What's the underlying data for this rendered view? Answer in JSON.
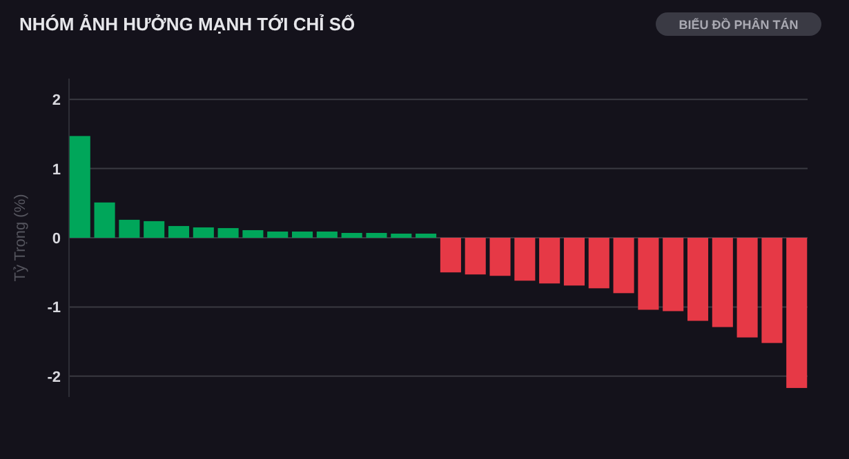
{
  "chart_data": {
    "type": "bar",
    "title": "NHÓM ẢNH HƯỞNG MẠNH TỚI CHỈ SỐ",
    "ylabel": "Tỷ Trọng (%)",
    "annotations": [
      "BIỂU ĐỒ PHÂN TÁN"
    ],
    "categories": [
      null,
      null,
      null,
      null,
      null,
      null,
      null,
      null,
      null,
      null,
      null,
      null,
      null,
      null,
      null,
      null,
      null,
      null,
      null,
      null,
      null,
      null,
      null,
      null,
      null,
      null,
      null,
      null,
      null,
      null
    ],
    "values": [
      1.47,
      0.51,
      0.26,
      0.24,
      0.17,
      0.15,
      0.14,
      0.11,
      0.09,
      0.09,
      0.09,
      0.07,
      0.07,
      0.06,
      0.06,
      -0.5,
      -0.53,
      -0.55,
      -0.62,
      -0.66,
      -0.69,
      -0.73,
      -0.8,
      -1.04,
      -1.06,
      -1.2,
      -1.29,
      -1.44,
      -1.52,
      -2.17
    ],
    "colors": [
      "#00a65a",
      "#00a65a",
      "#00a65a",
      "#00a65a",
      "#00a65a",
      "#00a65a",
      "#00a65a",
      "#00a65a",
      "#00a65a",
      "#00a65a",
      "#00a65a",
      "#00a65a",
      "#00a65a",
      "#00a65a",
      "#00a65a",
      "#e63946",
      "#e63946",
      "#e63946",
      "#e63946",
      "#e63946",
      "#e63946",
      "#e63946",
      "#e63946",
      "#e63946",
      "#e63946",
      "#e63946",
      "#e63946",
      "#e63946",
      "#e63946",
      "#e63946"
    ],
    "ylim": [
      -2.3,
      2.3
    ],
    "yticks": [
      -2,
      -1,
      0,
      1,
      2
    ],
    "grid": "y",
    "tick_labels": "y"
  }
}
